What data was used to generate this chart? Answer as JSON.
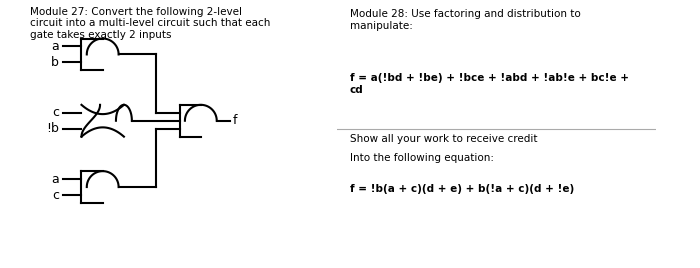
{
  "title_left": "Module 27: Convert the following 2-level\ncircuit into a multi-level circuit such that each\ngate takes exactly 2 inputs",
  "title_right_line1": "Module 28: Use factoring and distribution to\nmanipulate:",
  "title_right_bold1": "f = a(!bd + !be) + !bce + !abd + !ab!e + bc!e +\ncd",
  "title_right_line2": "Into the following equation:",
  "title_right_bold2": "f = !b(a + c)(d + e) + b(!a + c)(d + !e)",
  "title_right_line3": "Show all your work to receive credit",
  "bg_color": "#ffffff",
  "border_color": "#888888",
  "gate_color": "#000000",
  "wire_color": "#000000",
  "text_color": "#000000"
}
